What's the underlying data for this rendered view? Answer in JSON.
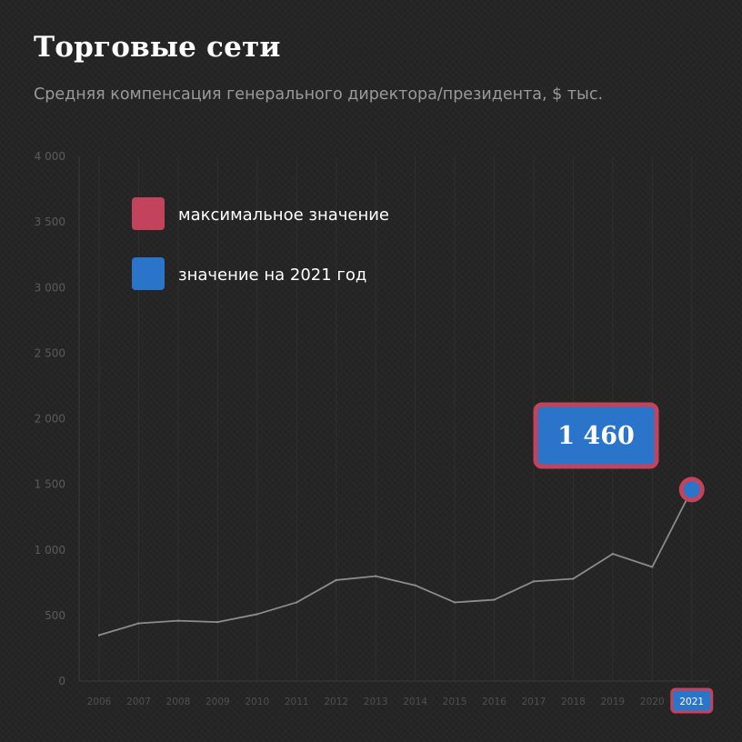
{
  "title": "Торговые сети",
  "subtitle": "Средняя компенсация генерального директора/президента, $ тыс.",
  "colors": {
    "background": "#252525",
    "line": "#8c8c8c",
    "max_marker": "#c4435c",
    "current_marker": "#2a74c9",
    "axis_text": "#5b5b5b",
    "grid": "#2f2f2f"
  },
  "legend": [
    {
      "label": "максимальное значение",
      "color": "#c4435c"
    },
    {
      "label": "значение на 2021 год",
      "color": "#2a74c9"
    }
  ],
  "callout": {
    "label": "1 460",
    "year": "2021"
  },
  "chart_data": {
    "type": "line",
    "title": "Торговые сети",
    "subtitle": "Средняя компенсация генерального директора/президента, $ тыс.",
    "xlabel": "",
    "ylabel": "",
    "x": [
      "2006",
      "2007",
      "2008",
      "2009",
      "2010",
      "2011",
      "2012",
      "2013",
      "2014",
      "2015",
      "2016",
      "2017",
      "2018",
      "2019",
      "2020",
      "2021"
    ],
    "series": [
      {
        "values": [
          350,
          440,
          460,
          450,
          510,
          600,
          770,
          800,
          730,
          600,
          620,
          760,
          780,
          970,
          870,
          1460
        ]
      }
    ],
    "ylim": [
      0,
      4000
    ],
    "yticks": [
      0,
      500,
      1000,
      1500,
      2000,
      2500,
      3000,
      3500,
      4000
    ],
    "ytick_labels": [
      "0",
      "500",
      "1 000",
      "1 500",
      "2 000",
      "2 500",
      "3 000",
      "3 500",
      "4 000"
    ],
    "grid": "vertical",
    "legend_position": "top-left",
    "highlight": {
      "year": "2021",
      "value": 1460,
      "label": "1 460"
    }
  }
}
